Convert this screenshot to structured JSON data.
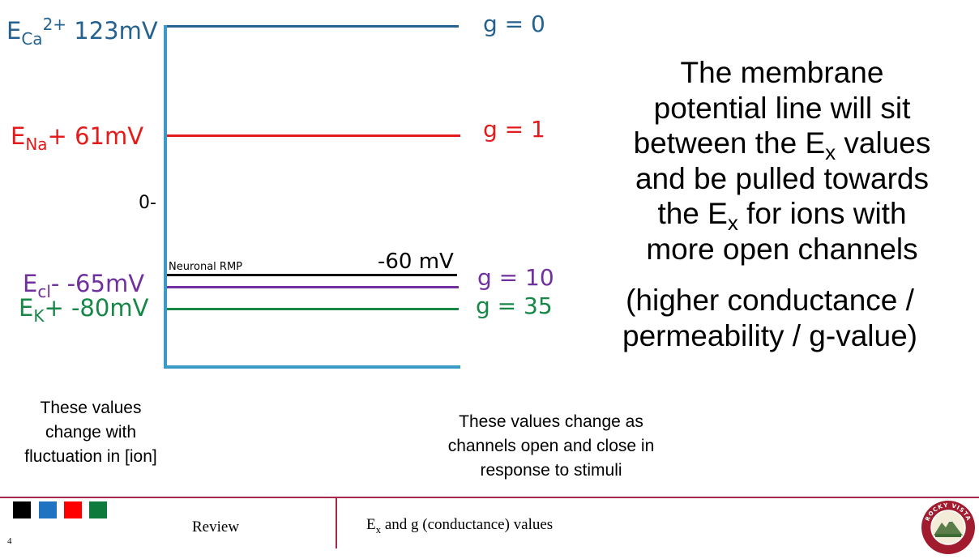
{
  "diagram": {
    "ions": [
      {
        "prefix": "E",
        "sub": "Ca",
        "sup": "2+",
        "suffix": " 123mV",
        "color": "#25628f"
      },
      {
        "prefix": "E",
        "sub": "Na",
        "sup": "",
        "suffix": "+  61mV",
        "color": "#e31b1b"
      },
      {
        "prefix": "E",
        "sub": "cl",
        "sup": "",
        "suffix": "-  -65mV",
        "color": "#7030a0"
      },
      {
        "prefix": "E",
        "sub": "K",
        "sup": "",
        "suffix": "+  -80mV",
        "color": "#178747"
      }
    ],
    "zero_label": "0-",
    "rmp_label": "Neuronal RMP",
    "rmp_value": "-60 mV",
    "g_values": [
      {
        "text": "g = 0",
        "color": "#25628f"
      },
      {
        "text": "g = 1",
        "color": "#e31b1b"
      },
      {
        "text": "g = 10",
        "color": "#7030a0"
      },
      {
        "text": "g = 35",
        "color": "#178747"
      }
    ]
  },
  "explanation": {
    "line1": "The membrane",
    "line2": "potential line will sit",
    "line3a": "between the E",
    "line3sub": "x",
    "line3b": " values",
    "line4": "and be pulled towards",
    "line5a": "the E",
    "line5sub": "x",
    "line5b": " for ions with",
    "line6": "more open channels",
    "paren1": "(higher conductance /",
    "paren2": "permeability / g-value)"
  },
  "notes": {
    "left": [
      "These values",
      "change with",
      "fluctuation in [ion]"
    ],
    "right": [
      "These values change as",
      "channels open and close in",
      "response to stimuli"
    ]
  },
  "footer": {
    "page_number": "4",
    "section": "Review",
    "title_prefix": "E",
    "title_sub": "x",
    "title_rest": " and g (conductance) values",
    "swatch_colors": [
      "#000000",
      "#1f73c1",
      "#ff0000",
      "#0e7a3c"
    ],
    "logo_text_top": "ROCKY VISTA",
    "logo_text_bottom": "UNIVERSITY"
  }
}
